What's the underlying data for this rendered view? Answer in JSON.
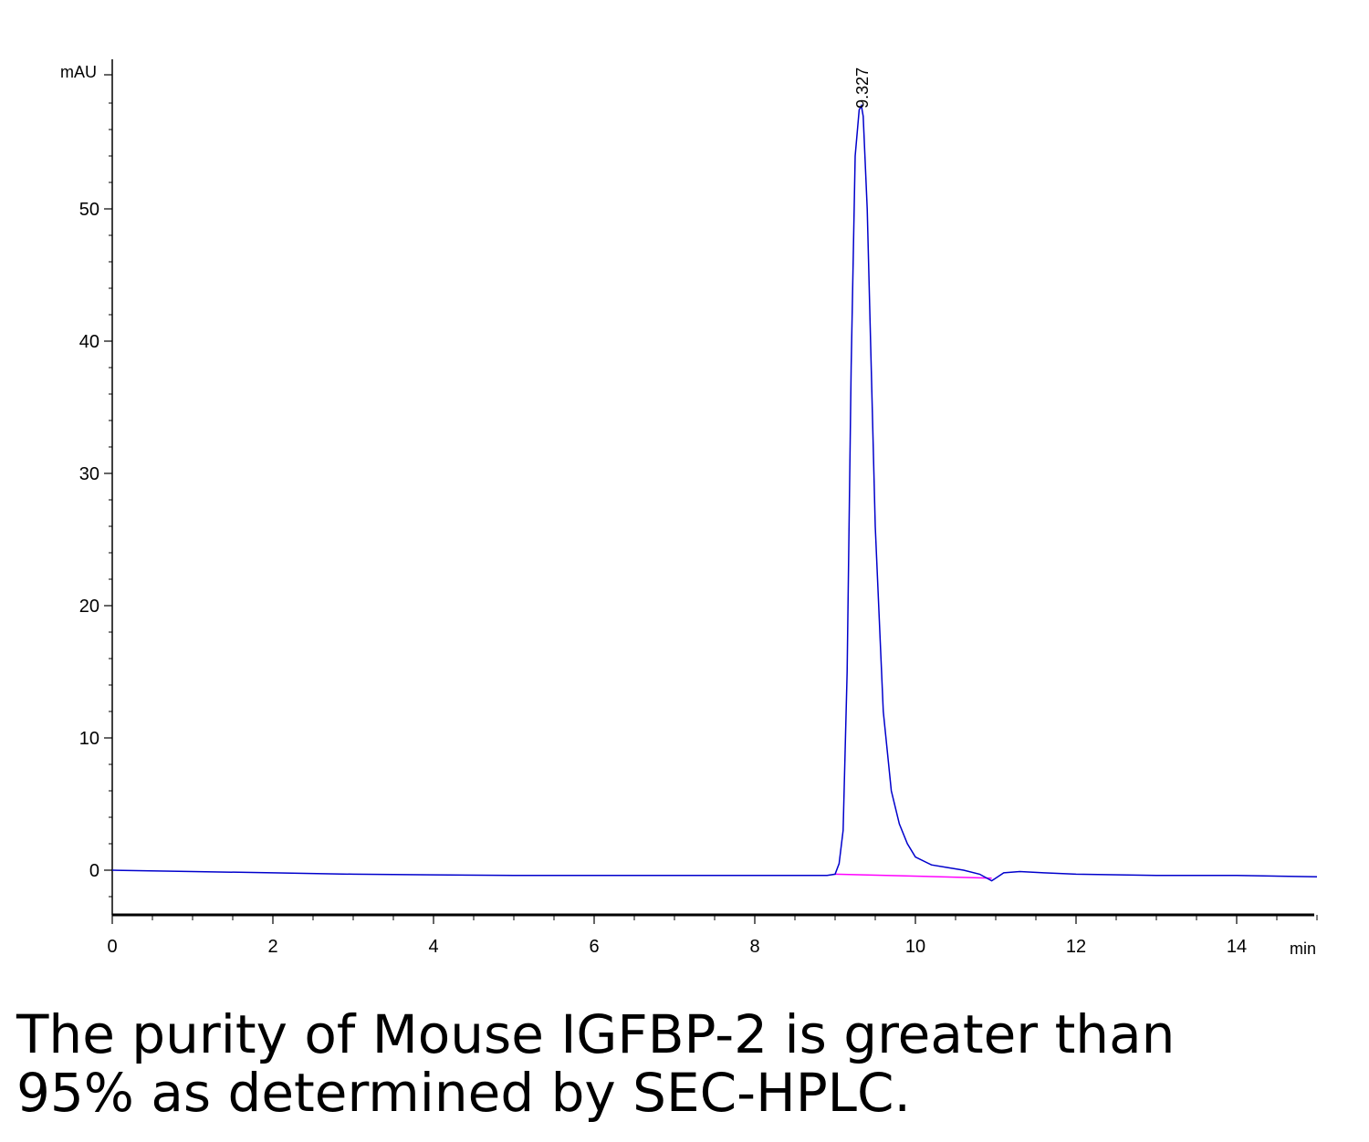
{
  "chart_data": {
    "type": "line",
    "ylabel": "mAU",
    "xlabel": "min",
    "xlim": [
      0,
      15
    ],
    "ylim": [
      -3.5,
      60
    ],
    "x_ticks": [
      0,
      2,
      4,
      6,
      8,
      10,
      12,
      14
    ],
    "y_ticks": [
      0,
      10,
      20,
      30,
      40,
      50
    ],
    "grid": false,
    "series": [
      {
        "color": "#0000cc",
        "x": [
          0,
          1,
          2,
          3,
          4,
          5,
          6,
          7,
          8,
          8.9,
          9.0,
          9.05,
          9.1,
          9.15,
          9.2,
          9.25,
          9.3,
          9.327,
          9.35,
          9.4,
          9.45,
          9.5,
          9.6,
          9.7,
          9.8,
          9.9,
          10.0,
          10.2,
          10.4,
          10.6,
          10.8,
          10.95,
          11.0,
          11.1,
          11.3,
          11.6,
          12,
          13,
          14,
          15
        ],
        "y": [
          0,
          -0.1,
          -0.2,
          -0.3,
          -0.35,
          -0.4,
          -0.4,
          -0.4,
          -0.4,
          -0.4,
          -0.3,
          0.5,
          3,
          15,
          38,
          54,
          57.5,
          57.8,
          57,
          50,
          38,
          26,
          12,
          6,
          3.5,
          2,
          1,
          0.4,
          0.2,
          0,
          -0.3,
          -0.8,
          -0.6,
          -0.2,
          -0.1,
          -0.2,
          -0.3,
          -0.4,
          -0.4,
          -0.5
        ]
      }
    ],
    "baseline": {
      "color": "#ff00ff",
      "from": [
        9.0,
        -0.3
      ],
      "to": [
        10.95,
        -0.6
      ]
    },
    "annotations": [
      {
        "text": "9.327",
        "x": 9.327,
        "y": 57.8,
        "rotation": -90
      }
    ]
  },
  "caption": {
    "line1": "The purity of Mouse IGFBP-2 is greater than",
    "line2": "95% as determined by SEC-HPLC."
  }
}
